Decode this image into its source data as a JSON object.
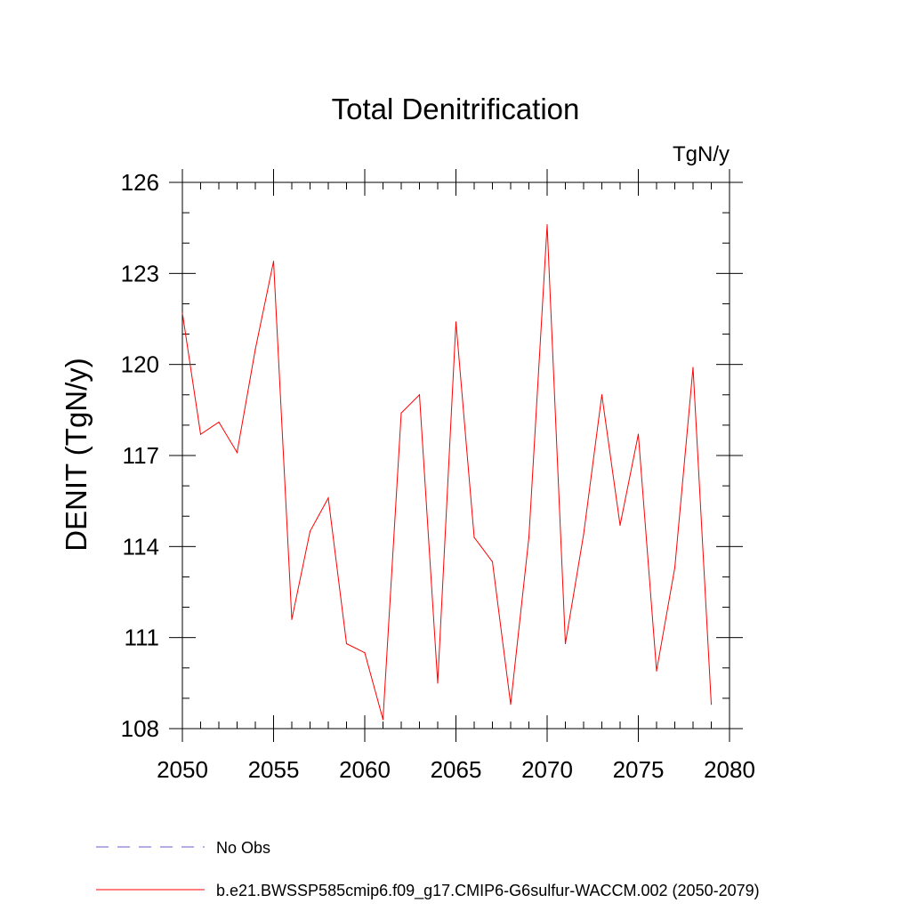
{
  "chart_data": {
    "type": "line",
    "title": "Total Denitrification",
    "units_label": "TgN/y",
    "xlabel": "",
    "ylabel": "DENIT  (TgN/y)",
    "xlim": [
      2050,
      2080
    ],
    "ylim": [
      108,
      126
    ],
    "x_ticks": [
      2050,
      2055,
      2060,
      2065,
      2070,
      2075,
      2080
    ],
    "y_ticks": [
      108,
      111,
      114,
      117,
      120,
      123,
      126
    ],
    "grid": false,
    "legend_position": "bottom",
    "colors": {
      "series": "#ff0000",
      "obs": "#6a5acd",
      "axis": "#000000"
    },
    "series": [
      {
        "name": "b.e21.BWSSP585cmip6.f09_g17.CMIP6-G6sulfur-WACCM.002 (2050-2079)",
        "x": [
          2050,
          2051,
          2052,
          2053,
          2054,
          2055,
          2056,
          2057,
          2058,
          2059,
          2060,
          2061,
          2062,
          2063,
          2064,
          2065,
          2066,
          2067,
          2068,
          2069,
          2070,
          2071,
          2072,
          2073,
          2074,
          2075,
          2076,
          2077,
          2078,
          2079
        ],
        "values": [
          121.7,
          117.7,
          118.1,
          117.1,
          120.5,
          123.4,
          111.6,
          114.5,
          115.6,
          110.8,
          110.5,
          108.3,
          118.4,
          119.0,
          109.5,
          121.4,
          114.3,
          113.5,
          108.8,
          114.3,
          124.6,
          110.8,
          114.4,
          119.0,
          114.7,
          117.7,
          109.9,
          113.3,
          119.9,
          108.8
        ]
      }
    ],
    "legend": [
      {
        "label": "No Obs",
        "style": "dashed"
      },
      {
        "label": "b.e21.BWSSP585cmip6.f09_g17.CMIP6-G6sulfur-WACCM.002 (2050-2079)",
        "style": "solid"
      }
    ]
  }
}
